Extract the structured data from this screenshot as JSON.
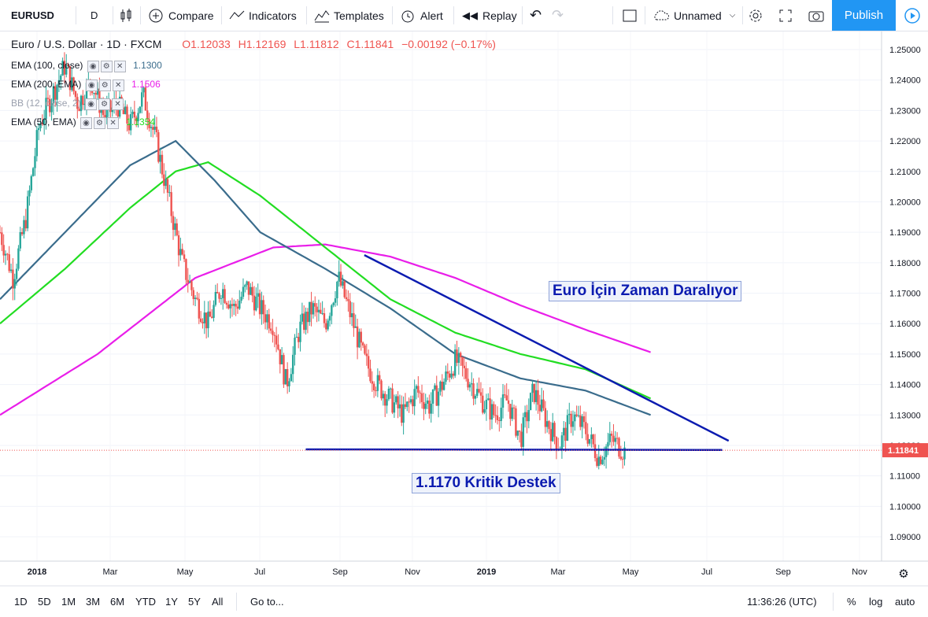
{
  "toolbar": {
    "symbol": "EURUSD",
    "interval": "D",
    "compare": "Compare",
    "indicators": "Indicators",
    "templates": "Templates",
    "alert": "Alert",
    "replay": "Replay",
    "layout_name": "Unnamed",
    "publish": "Publish"
  },
  "header": {
    "title": "Euro / U.S. Dollar · 1D · FXCM",
    "open": "O1.12033",
    "high": "H1.12169",
    "low": "L1.11812",
    "close": "C1.11841",
    "change": "−0.00192 (−0.17%)"
  },
  "studies": [
    {
      "label": "EMA (100, close)",
      "value": "1.1300",
      "color": "#3a6c8c"
    },
    {
      "label": "EMA (200, EMA)",
      "value": "1.1506",
      "color": "#e91ee9"
    },
    {
      "label": "BB (12, close, 2)",
      "value": "",
      "color": "#9aa0ad"
    },
    {
      "label": "EMA (50, EMA)",
      "value": "1.1354",
      "color": "#22dd22"
    }
  ],
  "annotations": {
    "title_box": "Euro İçin Zaman Daralıyor",
    "support_box": "1.1170 Kritik Destek"
  },
  "price_axis": {
    "ticks": [
      "1.25000",
      "1.24000",
      "1.23000",
      "1.22000",
      "1.21000",
      "1.20000",
      "1.19000",
      "1.18000",
      "1.17000",
      "1.16000",
      "1.15000",
      "1.14000",
      "1.13000",
      "1.12000",
      "1.11000",
      "1.10000",
      "1.09000"
    ],
    "last_price": "1.11841"
  },
  "time_axis": {
    "ticks": [
      "2018",
      "Mar",
      "May",
      "Jul",
      "Sep",
      "Nov",
      "2019",
      "Mar",
      "May",
      "Jul",
      "Sep",
      "Nov"
    ]
  },
  "bottom": {
    "ranges": [
      "1D",
      "5D",
      "1M",
      "3M",
      "6M",
      "YTD",
      "1Y",
      "5Y",
      "All"
    ],
    "goto": "Go to...",
    "clock": "11:36:26 (UTC)",
    "percent": "%",
    "log": "log",
    "auto": "auto"
  },
  "colors": {
    "up": "#26a69a",
    "down": "#ef5350",
    "ema100": "#3a6c8c",
    "ema200": "#e91ee9",
    "ema50": "#22dd22",
    "trendline": "#0b1bb0",
    "accent": "#2196f3"
  },
  "chart_data": {
    "type": "candlestick",
    "title": "Euro / U.S. Dollar · 1D · FXCM",
    "x_ticks": [
      "2018",
      "Mar",
      "May",
      "Jul",
      "Sep",
      "Nov",
      "2019",
      "Mar",
      "May",
      "Jul",
      "Sep",
      "Nov"
    ],
    "ylim": [
      1.085,
      1.256
    ],
    "y_ticks": [
      1.25,
      1.24,
      1.23,
      1.22,
      1.21,
      1.2,
      1.19,
      1.18,
      1.17,
      1.16,
      1.15,
      1.14,
      1.13,
      1.12,
      1.11,
      1.1,
      1.09
    ],
    "close_path": [
      {
        "t": 0.0,
        "v": 1.19
      },
      {
        "t": 0.02,
        "v": 1.175
      },
      {
        "t": 0.04,
        "v": 1.195
      },
      {
        "t": 0.06,
        "v": 1.225
      },
      {
        "t": 0.08,
        "v": 1.235
      },
      {
        "t": 0.1,
        "v": 1.245
      },
      {
        "t": 0.12,
        "v": 1.232
      },
      {
        "t": 0.14,
        "v": 1.24
      },
      {
        "t": 0.16,
        "v": 1.228
      },
      {
        "t": 0.18,
        "v": 1.232
      },
      {
        "t": 0.2,
        "v": 1.225
      },
      {
        "t": 0.22,
        "v": 1.235
      },
      {
        "t": 0.24,
        "v": 1.22
      },
      {
        "t": 0.26,
        "v": 1.2
      },
      {
        "t": 0.28,
        "v": 1.18
      },
      {
        "t": 0.3,
        "v": 1.168
      },
      {
        "t": 0.32,
        "v": 1.16
      },
      {
        "t": 0.34,
        "v": 1.172
      },
      {
        "t": 0.36,
        "v": 1.165
      },
      {
        "t": 0.38,
        "v": 1.172
      },
      {
        "t": 0.4,
        "v": 1.165
      },
      {
        "t": 0.42,
        "v": 1.16
      },
      {
        "t": 0.44,
        "v": 1.14
      },
      {
        "t": 0.46,
        "v": 1.158
      },
      {
        "t": 0.48,
        "v": 1.165
      },
      {
        "t": 0.5,
        "v": 1.16
      },
      {
        "t": 0.52,
        "v": 1.175
      },
      {
        "t": 0.54,
        "v": 1.162
      },
      {
        "t": 0.56,
        "v": 1.148
      },
      {
        "t": 0.58,
        "v": 1.14
      },
      {
        "t": 0.6,
        "v": 1.135
      },
      {
        "t": 0.62,
        "v": 1.13
      },
      {
        "t": 0.64,
        "v": 1.138
      },
      {
        "t": 0.66,
        "v": 1.133
      },
      {
        "t": 0.68,
        "v": 1.14
      },
      {
        "t": 0.7,
        "v": 1.148
      },
      {
        "t": 0.72,
        "v": 1.142
      },
      {
        "t": 0.74,
        "v": 1.135
      },
      {
        "t": 0.76,
        "v": 1.13
      },
      {
        "t": 0.78,
        "v": 1.135
      },
      {
        "t": 0.8,
        "v": 1.122
      },
      {
        "t": 0.82,
        "v": 1.138
      },
      {
        "t": 0.84,
        "v": 1.128
      },
      {
        "t": 0.86,
        "v": 1.12
      },
      {
        "t": 0.88,
        "v": 1.13
      },
      {
        "t": 0.9,
        "v": 1.125
      },
      {
        "t": 0.92,
        "v": 1.116
      },
      {
        "t": 0.94,
        "v": 1.122
      },
      {
        "t": 0.96,
        "v": 1.118
      }
    ],
    "ema100": [
      {
        "t": 0.0,
        "v": 1.168
      },
      {
        "t": 0.1,
        "v": 1.19
      },
      {
        "t": 0.2,
        "v": 1.212
      },
      {
        "t": 0.27,
        "v": 1.22
      },
      {
        "t": 0.33,
        "v": 1.207
      },
      {
        "t": 0.4,
        "v": 1.19
      },
      {
        "t": 0.5,
        "v": 1.178
      },
      {
        "t": 0.6,
        "v": 1.165
      },
      {
        "t": 0.7,
        "v": 1.15
      },
      {
        "t": 0.8,
        "v": 1.142
      },
      {
        "t": 0.9,
        "v": 1.138
      },
      {
        "t": 1.0,
        "v": 1.13
      }
    ],
    "ema50": [
      {
        "t": 0.0,
        "v": 1.16
      },
      {
        "t": 0.1,
        "v": 1.178
      },
      {
        "t": 0.2,
        "v": 1.198
      },
      {
        "t": 0.27,
        "v": 1.21
      },
      {
        "t": 0.32,
        "v": 1.213
      },
      {
        "t": 0.4,
        "v": 1.202
      },
      {
        "t": 0.5,
        "v": 1.185
      },
      {
        "t": 0.6,
        "v": 1.168
      },
      {
        "t": 0.7,
        "v": 1.157
      },
      {
        "t": 0.8,
        "v": 1.15
      },
      {
        "t": 0.9,
        "v": 1.145
      },
      {
        "t": 1.0,
        "v": 1.1354
      }
    ],
    "ema200": [
      {
        "t": 0.0,
        "v": 1.13
      },
      {
        "t": 0.15,
        "v": 1.15
      },
      {
        "t": 0.3,
        "v": 1.175
      },
      {
        "t": 0.42,
        "v": 1.185
      },
      {
        "t": 0.5,
        "v": 1.186
      },
      {
        "t": 0.6,
        "v": 1.182
      },
      {
        "t": 0.7,
        "v": 1.175
      },
      {
        "t": 0.8,
        "v": 1.166
      },
      {
        "t": 0.9,
        "v": 1.158
      },
      {
        "t": 1.0,
        "v": 1.1506
      }
    ],
    "drawings": [
      {
        "name": "descending-trendline",
        "from": [
          0.56,
          1.1825
        ],
        "to": [
          1.12,
          1.1215
        ]
      },
      {
        "name": "support-line",
        "from": [
          0.47,
          1.1187
        ],
        "to": [
          1.11,
          1.1185
        ]
      }
    ],
    "last_price": 1.11841
  }
}
